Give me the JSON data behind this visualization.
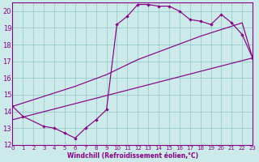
{
  "bg_color": "#cceaea",
  "line_color": "#880088",
  "grid_color": "#99cccc",
  "xlim": [
    0,
    23
  ],
  "ylim": [
    12,
    20.5
  ],
  "yticks": [
    12,
    13,
    14,
    15,
    16,
    17,
    18,
    19,
    20
  ],
  "xticks": [
    0,
    1,
    2,
    3,
    4,
    5,
    6,
    7,
    8,
    9,
    10,
    11,
    12,
    13,
    14,
    15,
    16,
    17,
    18,
    19,
    20,
    21,
    22,
    23
  ],
  "xlabel": "Windchill (Refroidissement éolien,°C)",
  "curve_x": [
    0,
    1,
    3,
    4,
    5,
    6,
    7,
    8,
    9,
    10,
    11,
    12,
    13,
    14,
    15,
    16,
    17,
    18,
    19,
    20,
    21,
    22,
    23
  ],
  "curve_y": [
    14.3,
    13.7,
    13.1,
    13.0,
    12.7,
    12.4,
    13.0,
    13.5,
    14.1,
    19.2,
    19.7,
    20.4,
    20.4,
    20.3,
    20.3,
    20.0,
    19.5,
    19.4,
    19.2,
    19.8,
    19.3,
    18.6,
    17.2
  ],
  "line2_x": [
    0,
    6,
    9,
    12,
    15,
    18,
    22,
    23
  ],
  "line2_y": [
    14.3,
    15.5,
    16.2,
    17.1,
    17.8,
    18.5,
    19.3,
    17.2
  ],
  "line3_x": [
    0,
    23
  ],
  "line3_y": [
    13.5,
    17.2
  ]
}
